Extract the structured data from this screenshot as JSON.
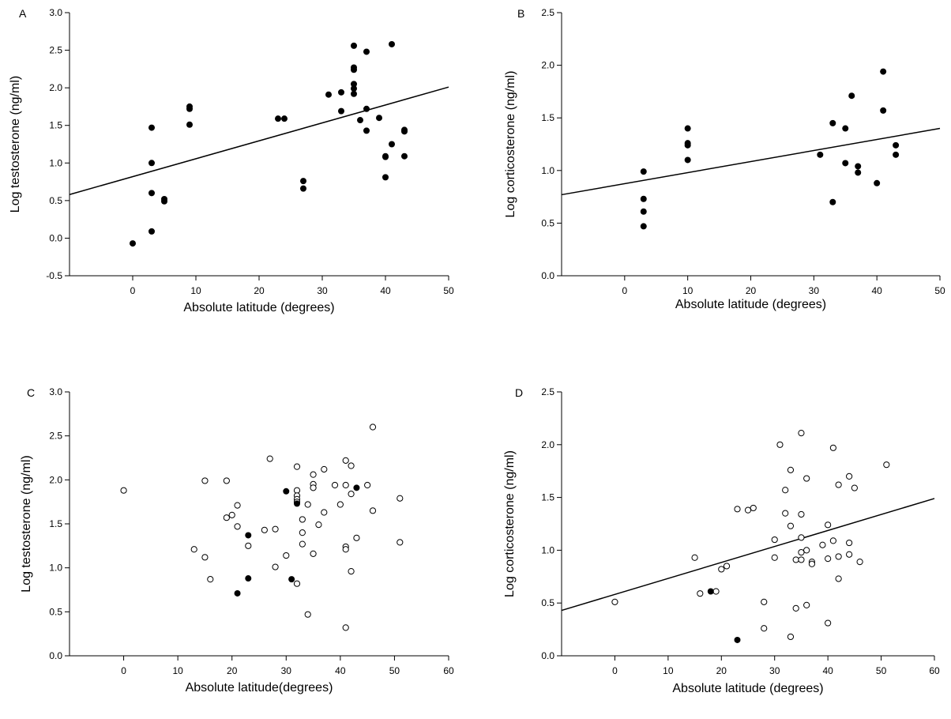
{
  "chart_data": [
    {
      "panel": "A",
      "type": "scatter",
      "xlabel": "Absolute latitude (degrees)",
      "ylabel": "Log testosterone (ng/ml)",
      "xlim": [
        -10,
        50
      ],
      "ylim": [
        -0.5,
        3.0
      ],
      "xticks": [
        0,
        10,
        20,
        30,
        40,
        50
      ],
      "yticks": [
        -0.5,
        0.0,
        0.5,
        1.0,
        1.5,
        2.0,
        2.5,
        3.0
      ],
      "ytick_decimals": 1,
      "grid": false,
      "legend": "none",
      "series": [
        {
          "marker": "filled",
          "points": [
            [
              0,
              -0.07
            ],
            [
              3,
              1.47
            ],
            [
              3,
              1.0
            ],
            [
              3,
              0.6
            ],
            [
              3,
              0.09
            ],
            [
              5,
              0.52
            ],
            [
              5,
              0.49
            ],
            [
              9,
              1.75
            ],
            [
              9,
              1.72
            ],
            [
              9,
              1.51
            ],
            [
              23,
              1.59
            ],
            [
              24,
              1.59
            ],
            [
              27,
              0.76
            ],
            [
              27,
              0.66
            ],
            [
              31,
              1.91
            ],
            [
              33,
              1.94
            ],
            [
              33,
              1.69
            ],
            [
              35,
              2.56
            ],
            [
              35,
              2.27
            ],
            [
              35,
              2.24
            ],
            [
              35,
              2.05
            ],
            [
              35,
              1.99
            ],
            [
              35,
              1.92
            ],
            [
              36,
              1.57
            ],
            [
              37,
              2.48
            ],
            [
              37,
              1.72
            ],
            [
              37,
              1.43
            ],
            [
              39,
              1.6
            ],
            [
              40,
              1.09
            ],
            [
              40,
              1.08
            ],
            [
              40,
              0.81
            ],
            [
              41,
              2.58
            ],
            [
              41,
              1.25
            ],
            [
              43,
              1.44
            ],
            [
              43,
              1.42
            ],
            [
              43,
              1.09
            ]
          ]
        }
      ],
      "trendline": [
        [
          -10,
          0.58
        ],
        [
          50,
          2.01
        ]
      ]
    },
    {
      "panel": "B",
      "type": "scatter",
      "xlabel": "Absolute latitude (degrees)",
      "ylabel": "Log corticosterone (ng/ml)",
      "xlim": [
        -10,
        50
      ],
      "ylim": [
        0.0,
        2.5
      ],
      "xticks": [
        0,
        10,
        20,
        30,
        40,
        50
      ],
      "yticks": [
        0.0,
        0.5,
        1.0,
        1.5,
        2.0,
        2.5
      ],
      "ytick_decimals": 1,
      "grid": false,
      "legend": "none",
      "series": [
        {
          "marker": "filled",
          "points": [
            [
              3,
              0.99
            ],
            [
              3,
              0.73
            ],
            [
              3,
              0.61
            ],
            [
              3,
              0.47
            ],
            [
              10,
              1.4
            ],
            [
              10,
              1.26
            ],
            [
              10,
              1.24
            ],
            [
              10,
              1.1
            ],
            [
              31,
              1.15
            ],
            [
              33,
              1.45
            ],
            [
              33,
              0.7
            ],
            [
              35,
              1.4
            ],
            [
              35,
              1.07
            ],
            [
              36,
              1.71
            ],
            [
              37,
              1.04
            ],
            [
              37,
              0.98
            ],
            [
              40,
              0.88
            ],
            [
              41,
              1.94
            ],
            [
              41,
              1.57
            ],
            [
              43,
              1.24
            ],
            [
              43,
              1.15
            ]
          ]
        }
      ],
      "trendline": [
        [
          -10,
          0.77
        ],
        [
          50,
          1.4
        ]
      ]
    },
    {
      "panel": "C",
      "type": "scatter",
      "xlabel": "Absolute latitude(degrees)",
      "ylabel": "Log testosterone (ng/ml)",
      "xlim": [
        -10,
        60
      ],
      "ylim": [
        0.0,
        3.0
      ],
      "xticks": [
        0,
        10,
        20,
        30,
        40,
        50,
        60
      ],
      "yticks": [
        0.0,
        0.5,
        1.0,
        1.5,
        2.0,
        2.5,
        3.0
      ],
      "ytick_decimals": 1,
      "grid": false,
      "legend": "none",
      "series": [
        {
          "marker": "open",
          "points": [
            [
              0,
              1.88
            ],
            [
              13,
              1.21
            ],
            [
              15,
              1.12
            ],
            [
              15,
              1.99
            ],
            [
              16,
              0.87
            ],
            [
              19,
              1.99
            ],
            [
              19,
              1.57
            ],
            [
              20,
              1.6
            ],
            [
              21,
              1.71
            ],
            [
              21,
              1.47
            ],
            [
              23,
              1.25
            ],
            [
              26,
              1.43
            ],
            [
              27,
              2.24
            ],
            [
              28,
              1.44
            ],
            [
              28,
              1.01
            ],
            [
              30,
              1.14
            ],
            [
              32,
              2.15
            ],
            [
              32,
              1.88
            ],
            [
              32,
              1.82
            ],
            [
              32,
              1.78
            ],
            [
              32,
              1.75
            ],
            [
              32,
              0.82
            ],
            [
              33,
              1.55
            ],
            [
              33,
              1.4
            ],
            [
              33,
              1.27
            ],
            [
              34,
              1.72
            ],
            [
              34,
              0.47
            ],
            [
              35,
              2.06
            ],
            [
              35,
              1.95
            ],
            [
              35,
              1.91
            ],
            [
              35,
              1.16
            ],
            [
              36,
              1.49
            ],
            [
              37,
              2.12
            ],
            [
              37,
              1.63
            ],
            [
              39,
              1.94
            ],
            [
              40,
              1.72
            ],
            [
              41,
              2.22
            ],
            [
              41,
              1.94
            ],
            [
              41,
              1.24
            ],
            [
              41,
              1.21
            ],
            [
              41,
              0.32
            ],
            [
              42,
              2.16
            ],
            [
              42,
              1.84
            ],
            [
              42,
              0.96
            ],
            [
              43,
              1.34
            ],
            [
              45,
              1.94
            ],
            [
              46,
              2.6
            ],
            [
              46,
              1.65
            ],
            [
              51,
              1.79
            ],
            [
              51,
              1.29
            ]
          ]
        },
        {
          "marker": "filled",
          "points": [
            [
              21,
              0.71
            ],
            [
              23,
              1.37
            ],
            [
              23,
              0.88
            ],
            [
              30,
              1.87
            ],
            [
              31,
              0.87
            ],
            [
              32,
              1.73
            ],
            [
              43,
              1.91
            ]
          ]
        }
      ],
      "trendline": null
    },
    {
      "panel": "D",
      "type": "scatter",
      "xlabel": "Absolute latitude (degrees)",
      "ylabel": "Log corticosterone (ng/ml)",
      "xlim": [
        -10,
        60
      ],
      "ylim": [
        0.0,
        2.5
      ],
      "xticks": [
        0,
        10,
        20,
        30,
        40,
        50,
        60
      ],
      "yticks": [
        0.0,
        0.5,
        1.0,
        1.5,
        2.0,
        2.5
      ],
      "ytick_decimals": 1,
      "grid": false,
      "legend": "none",
      "series": [
        {
          "marker": "open",
          "points": [
            [
              0,
              0.51
            ],
            [
              15,
              0.93
            ],
            [
              16,
              0.59
            ],
            [
              19,
              0.61
            ],
            [
              20,
              0.82
            ],
            [
              21,
              0.85
            ],
            [
              23,
              1.39
            ],
            [
              25,
              1.38
            ],
            [
              26,
              1.4
            ],
            [
              28,
              0.51
            ],
            [
              28,
              0.26
            ],
            [
              30,
              1.1
            ],
            [
              30,
              0.93
            ],
            [
              31,
              2.0
            ],
            [
              32,
              1.57
            ],
            [
              32,
              1.35
            ],
            [
              33,
              1.76
            ],
            [
              33,
              1.23
            ],
            [
              33,
              0.18
            ],
            [
              34,
              0.91
            ],
            [
              34,
              0.45
            ],
            [
              35,
              2.11
            ],
            [
              35,
              1.34
            ],
            [
              35,
              1.12
            ],
            [
              35,
              0.98
            ],
            [
              35,
              0.91
            ],
            [
              36,
              1.68
            ],
            [
              36,
              1.0
            ],
            [
              36,
              0.48
            ],
            [
              37,
              0.89
            ],
            [
              37,
              0.87
            ],
            [
              39,
              1.05
            ],
            [
              40,
              1.24
            ],
            [
              40,
              0.92
            ],
            [
              40,
              0.31
            ],
            [
              41,
              1.97
            ],
            [
              41,
              1.09
            ],
            [
              42,
              1.62
            ],
            [
              42,
              0.94
            ],
            [
              42,
              0.73
            ],
            [
              44,
              1.7
            ],
            [
              44,
              1.07
            ],
            [
              44,
              0.96
            ],
            [
              45,
              1.59
            ],
            [
              46,
              0.89
            ],
            [
              51,
              1.81
            ]
          ]
        },
        {
          "marker": "filled",
          "points": [
            [
              18,
              0.61
            ],
            [
              23,
              0.15
            ]
          ]
        }
      ],
      "trendline": [
        [
          -10,
          0.43
        ],
        [
          60,
          1.49
        ]
      ]
    }
  ],
  "panel_labels": [
    "A",
    "B",
    "C",
    "D"
  ]
}
